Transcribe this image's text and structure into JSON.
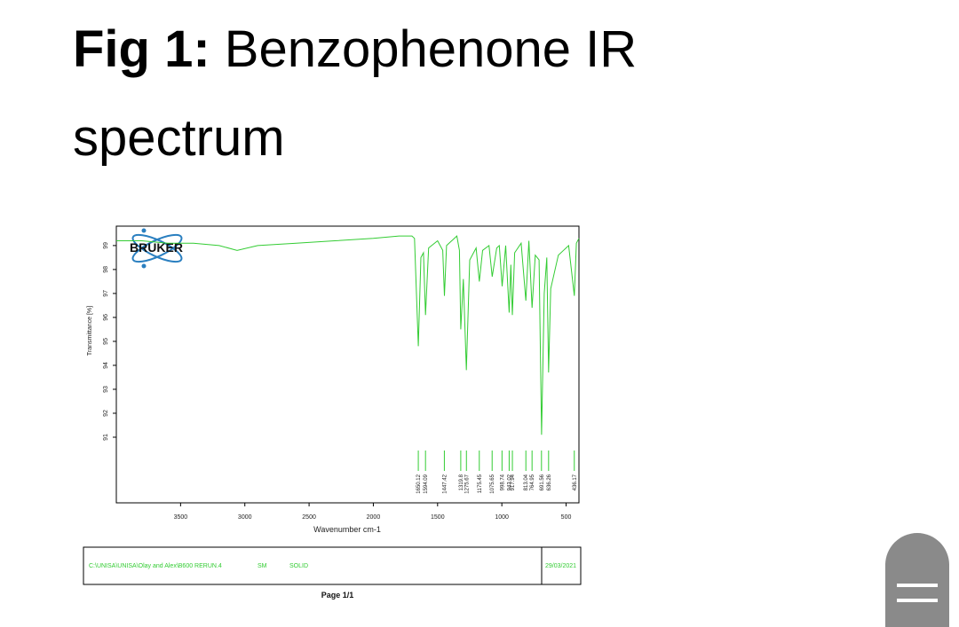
{
  "slide": {
    "title_prefix": "Fig 1:",
    "title": "Benzophenone IR spectrum"
  },
  "logo": "BRUKER",
  "chart_data": {
    "type": "line",
    "xlabel": "Wavenumber cm-1",
    "ylabel": "Transmittance [%]",
    "xlim": [
      4000,
      400
    ],
    "ylim": [
      88.26,
      99.81
    ],
    "xticks": [
      3500,
      3000,
      2500,
      2000,
      1500,
      1000,
      500
    ],
    "yticks": [
      91,
      92,
      93,
      94,
      95,
      96,
      97,
      98,
      99
    ],
    "grid": false,
    "x": [
      4000,
      3800,
      3600,
      3400,
      3200,
      3060,
      2900,
      2600,
      2300,
      2000,
      1800,
      1700,
      1680,
      1650,
      1630,
      1610,
      1594,
      1570,
      1500,
      1460,
      1447,
      1430,
      1350,
      1330,
      1320,
      1300,
      1276,
      1250,
      1200,
      1175,
      1150,
      1100,
      1075,
      1040,
      1020,
      998,
      970,
      943,
      930,
      918,
      900,
      850,
      813,
      790,
      765,
      740,
      710,
      691,
      670,
      650,
      636,
      620,
      560,
      480,
      436,
      420,
      400
    ],
    "series": [
      {
        "color": "#33cc33",
        "values": [
          99.2,
          99.2,
          99.1,
          99.1,
          99.0,
          98.8,
          99.0,
          99.1,
          99.2,
          99.3,
          99.4,
          99.4,
          99.3,
          94.8,
          98.5,
          98.7,
          96.1,
          98.9,
          99.2,
          98.8,
          96.9,
          99.0,
          99.4,
          98.8,
          95.5,
          97.6,
          93.8,
          98.4,
          98.9,
          97.5,
          98.8,
          99.0,
          97.7,
          98.9,
          99.0,
          97.3,
          99.0,
          96.2,
          98.2,
          96.1,
          98.7,
          99.1,
          96.7,
          99.2,
          96.4,
          98.6,
          98.4,
          91.1,
          97.0,
          98.5,
          93.7,
          97.2,
          98.6,
          99.0,
          96.9,
          99.1,
          99.3
        ]
      }
    ],
    "peaks": [
      1650.12,
      1594.09,
      1447.42,
      1319.8,
      1275.67,
      1175.45,
      1075.65,
      998.74,
      943.02,
      917.94,
      813.04,
      764.95,
      691.56,
      636.26,
      436.17
    ],
    "peak_color": "#33cc33"
  },
  "footer": {
    "path": "C:\\UNISA\\UNISA\\Olay and Alex\\B600 RERUN.4",
    "operator": "SM",
    "state": "SOLID",
    "date": "29/03/2021"
  },
  "page_label": "Page 1/1"
}
